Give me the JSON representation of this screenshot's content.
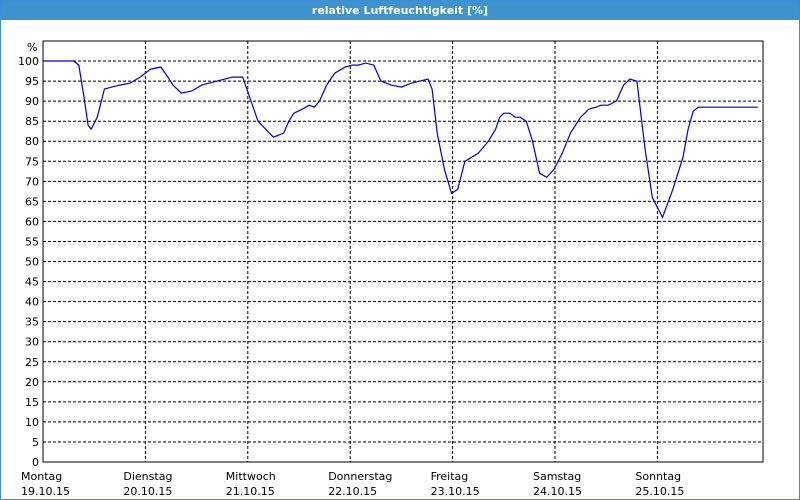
{
  "window": {
    "title": "relative Luftfeuchtigkeit [%]",
    "title_bar_color": "#3f93cc"
  },
  "chart_data": {
    "type": "line",
    "title": "relative Luftfeuchtigkeit [%]",
    "ylabel": "%",
    "xlabel": "",
    "ylim": [
      0,
      105
    ],
    "xlim": [
      0,
      7
    ],
    "grid": true,
    "grid_style": "dashed",
    "y_ticks": [
      0,
      5,
      10,
      15,
      20,
      25,
      30,
      35,
      40,
      45,
      50,
      55,
      60,
      65,
      70,
      75,
      80,
      85,
      90,
      95,
      100
    ],
    "x_ticks": [
      {
        "x": 0,
        "day": "Montag",
        "date": "19.10.15"
      },
      {
        "x": 1,
        "day": "Dienstag",
        "date": "20.10.15"
      },
      {
        "x": 2,
        "day": "Mittwoch",
        "date": "21.10.15"
      },
      {
        "x": 3,
        "day": "Donnerstag",
        "date": "22.10.15"
      },
      {
        "x": 4,
        "day": "Freitag",
        "date": "23.10.15"
      },
      {
        "x": 5,
        "day": "Samstag",
        "date": "24.10.15"
      },
      {
        "x": 6,
        "day": "Sonntag",
        "date": "25.10.15"
      }
    ],
    "series": [
      {
        "color": "#0000cc",
        "x": [
          0.0,
          0.2,
          0.3,
          0.35,
          0.4,
          0.44,
          0.47,
          0.53,
          0.6,
          0.67,
          0.75,
          0.85,
          0.95,
          1.05,
          1.15,
          1.22,
          1.27,
          1.35,
          1.45,
          1.55,
          1.7,
          1.85,
          1.95,
          2.1,
          2.25,
          2.35,
          2.4,
          2.45,
          2.53,
          2.6,
          2.65,
          2.7,
          2.77,
          2.85,
          2.95,
          3.02,
          3.08,
          3.15,
          3.23,
          3.3,
          3.4,
          3.5,
          3.6,
          3.68,
          3.76,
          3.8,
          3.85,
          3.92,
          3.99,
          4.05,
          4.12,
          4.25,
          4.35,
          4.42,
          4.46,
          4.5,
          4.56,
          4.61,
          4.66,
          4.72,
          4.78,
          4.85,
          4.92,
          4.99,
          5.07,
          5.15,
          5.25,
          5.33,
          5.4,
          5.45,
          5.52,
          5.6,
          5.67,
          5.73,
          5.8,
          5.88,
          5.95,
          6.05,
          6.15,
          6.25,
          6.3,
          6.35,
          6.4,
          6.45,
          6.48,
          6.52,
          6.58,
          6.62,
          6.67,
          6.72,
          6.78,
          6.85,
          6.92,
          6.98
        ],
        "y": [
          100,
          100,
          100,
          99,
          91,
          84,
          83,
          86,
          93,
          93.5,
          94,
          94.5,
          96,
          98,
          98.5,
          96,
          94,
          92,
          92.5,
          94,
          95,
          96,
          96,
          85,
          81,
          82,
          85,
          87,
          88,
          89,
          88.5,
          90,
          94,
          97,
          98.5,
          99,
          99,
          99.5,
          99,
          95,
          94,
          93.5,
          94.5,
          95,
          95.5,
          93,
          82,
          73,
          67,
          68,
          75,
          77,
          80,
          83,
          86,
          87,
          87,
          86,
          86,
          85,
          80,
          72,
          71,
          73,
          77,
          82,
          86,
          88,
          88.5,
          89,
          89,
          90,
          94,
          95.5,
          95,
          78,
          66,
          61,
          68,
          76,
          83,
          87.5,
          88.5,
          88.5,
          88.5,
          88.5,
          88.5,
          88.5,
          88.5,
          88.5,
          88.5,
          88.5,
          88.5,
          88.5
        ]
      }
    ]
  }
}
